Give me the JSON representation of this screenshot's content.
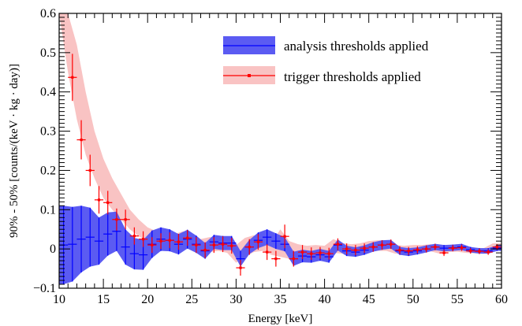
{
  "chart_data": {
    "type": "line",
    "xlabel": "Energy [keV]",
    "ylabel": "90% - 50% [counts/(keV · kg · day)]",
    "xlim": [
      10,
      60
    ],
    "ylim": [
      -0.1,
      0.6
    ],
    "xticks": [
      10,
      15,
      20,
      25,
      30,
      35,
      40,
      45,
      50,
      55,
      60
    ],
    "xtick_labels": [
      "10",
      "15",
      "20",
      "25",
      "30",
      "35",
      "40",
      "45",
      "50",
      "55",
      "60"
    ],
    "yticks": [
      -0.1,
      0,
      0.1,
      0.2,
      0.3,
      0.4,
      0.5,
      0.6
    ],
    "ytick_labels": [
      "−0.1",
      "0",
      "0.1",
      "0.2",
      "0.3",
      "0.4",
      "0.5",
      "0.6"
    ],
    "legend_position": "top-right",
    "bin_width": 1,
    "series": [
      {
        "name": "analysis thresholds applied",
        "color": "#0000ff",
        "band_color": "#5b5bf2",
        "x": [
          10.5,
          11.5,
          12.5,
          13.5,
          14.5,
          15.5,
          16.5,
          17.5,
          18.5,
          19.5,
          20.5,
          21.5,
          22.5,
          23.5,
          24.5,
          25.5,
          26.5,
          27.5,
          28.5,
          29.5,
          30.5,
          31.5,
          32.5,
          33.5,
          34.5,
          35.5,
          36.5,
          37.5,
          38.5,
          39.5,
          40.5,
          41.5,
          42.5,
          43.5,
          44.5,
          45.5,
          46.5,
          47.5,
          48.5,
          49.5,
          50.5,
          51.5,
          52.5,
          53.5,
          54.5,
          55.5,
          56.5,
          57.5,
          58.5,
          59.5
        ],
        "y": [
          0.01,
          0.012,
          0.025,
          0.03,
          0.02,
          0.038,
          0.045,
          0.005,
          -0.012,
          -0.015,
          0.012,
          0.025,
          0.022,
          0.012,
          0.025,
          0.012,
          -0.005,
          0.018,
          0.015,
          0.015,
          -0.025,
          0.005,
          0.022,
          0.03,
          0.02,
          0.012,
          -0.025,
          -0.018,
          -0.02,
          -0.015,
          -0.02,
          0.01,
          -0.005,
          -0.008,
          -0.003,
          0.005,
          0.01,
          0.012,
          -0.005,
          -0.008,
          -0.005,
          0.0,
          0.005,
          0.002,
          0.003,
          0.005,
          -0.002,
          -0.005,
          -0.005,
          0.002
        ],
        "err": [
          0.1,
          0.095,
          0.085,
          0.075,
          0.06,
          0.055,
          0.05,
          0.045,
          0.04,
          0.038,
          0.035,
          0.03,
          0.028,
          0.026,
          0.024,
          0.022,
          0.02,
          0.018,
          0.018,
          0.018,
          0.02,
          0.018,
          0.02,
          0.02,
          0.02,
          0.018,
          0.018,
          0.016,
          0.015,
          0.015,
          0.015,
          0.014,
          0.013,
          0.012,
          0.012,
          0.012,
          0.012,
          0.011,
          0.01,
          0.01,
          0.009,
          0.009,
          0.008,
          0.008,
          0.008,
          0.008,
          0.007,
          0.007,
          0.007,
          0.007
        ]
      },
      {
        "name": "trigger thresholds applied",
        "color": "#ff0000",
        "band_color": "#f9c3c3",
        "x": [
          11.5,
          12.5,
          13.5,
          14.5,
          15.5,
          16.5,
          17.5,
          18.5,
          19.5,
          20.5,
          21.5,
          22.5,
          23.5,
          24.5,
          25.5,
          26.5,
          27.5,
          28.5,
          29.5,
          30.5,
          31.5,
          32.5,
          33.5,
          34.5,
          35.5,
          36.5,
          37.5,
          38.5,
          39.5,
          40.5,
          41.5,
          42.5,
          43.5,
          44.5,
          45.5,
          46.5,
          47.5,
          48.5,
          49.5,
          50.5,
          51.5,
          52.5,
          53.5,
          54.5,
          55.5,
          56.5,
          57.5,
          58.5,
          59.5
        ],
        "y": [
          0.437,
          0.278,
          0.2,
          0.125,
          0.118,
          0.075,
          0.075,
          0.033,
          0.025,
          0.01,
          0.02,
          0.022,
          0.018,
          0.028,
          0.01,
          -0.003,
          0.01,
          0.012,
          0.008,
          -0.048,
          0.005,
          0.018,
          -0.008,
          -0.025,
          0.032,
          -0.025,
          -0.008,
          -0.012,
          -0.01,
          -0.012,
          0.012,
          0.0,
          -0.003,
          0.002,
          0.005,
          0.01,
          0.012,
          -0.003,
          -0.005,
          -0.002,
          0.0,
          0.005,
          -0.01,
          0.002,
          0.003,
          -0.005,
          -0.006,
          -0.008,
          0.005
        ],
        "err": [
          0.06,
          0.05,
          0.04,
          0.035,
          0.03,
          0.028,
          0.025,
          0.022,
          0.02,
          0.02,
          0.02,
          0.02,
          0.02,
          0.02,
          0.02,
          0.02,
          0.02,
          0.02,
          0.02,
          0.02,
          0.02,
          0.02,
          0.02,
          0.02,
          0.03,
          0.02,
          0.018,
          0.016,
          0.015,
          0.015,
          0.015,
          0.014,
          0.013,
          0.012,
          0.012,
          0.012,
          0.012,
          0.01,
          0.01,
          0.009,
          0.009,
          0.008,
          0.008,
          0.008,
          0.008,
          0.007,
          0.007,
          0.007,
          0.007
        ],
        "band_x": [
          10,
          11,
          12,
          13,
          14,
          15,
          16,
          17,
          18,
          19,
          20,
          21,
          22,
          23,
          24,
          25,
          26,
          27,
          28,
          29,
          30,
          31,
          32,
          33,
          34,
          35,
          36,
          37,
          38,
          39,
          40,
          41,
          42,
          43,
          44,
          45,
          46,
          47,
          48,
          49,
          50,
          51,
          52,
          53,
          54,
          55,
          56,
          57,
          58,
          59,
          60
        ],
        "band_lo": [
          0.6,
          0.45,
          0.33,
          0.24,
          0.18,
          0.13,
          0.1,
          0.075,
          0.05,
          0.032,
          0.02,
          0.008,
          0.005,
          0.003,
          0.005,
          0.0,
          -0.012,
          -0.008,
          -0.005,
          -0.01,
          -0.035,
          -0.02,
          -0.008,
          -0.005,
          -0.015,
          -0.02,
          -0.025,
          -0.022,
          -0.025,
          -0.022,
          -0.025,
          -0.01,
          -0.012,
          -0.013,
          -0.01,
          -0.008,
          -0.005,
          -0.005,
          -0.012,
          -0.012,
          -0.01,
          -0.008,
          -0.006,
          -0.012,
          -0.008,
          -0.007,
          -0.01,
          -0.011,
          -0.012,
          -0.008,
          -0.002
        ],
        "band_hi": [
          0.6,
          0.6,
          0.52,
          0.4,
          0.3,
          0.23,
          0.18,
          0.14,
          0.1,
          0.075,
          0.055,
          0.045,
          0.04,
          0.038,
          0.045,
          0.035,
          0.025,
          0.03,
          0.03,
          0.028,
          0.01,
          0.028,
          0.035,
          0.025,
          0.015,
          0.05,
          0.02,
          0.012,
          0.008,
          0.01,
          0.008,
          0.025,
          0.015,
          0.012,
          0.014,
          0.02,
          0.022,
          0.022,
          0.01,
          0.008,
          0.01,
          0.01,
          0.012,
          0.008,
          0.01,
          0.012,
          0.004,
          0.003,
          0.002,
          0.014,
          0.014
        ]
      }
    ]
  }
}
